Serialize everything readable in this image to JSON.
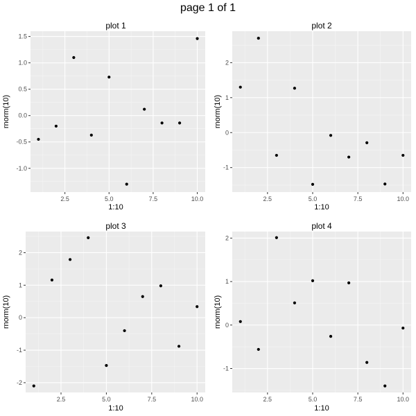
{
  "page": {
    "title": "page 1 of 1"
  },
  "colors": {
    "panel_background": "#EBEBEB",
    "grid_major": "#FFFFFF",
    "grid_minor": "#F5F5F5",
    "point": "#000000",
    "tick_text": "#4D4D4D"
  },
  "chart_data": [
    {
      "type": "scatter",
      "title": "plot 1",
      "xlabel": "1:10",
      "ylabel": "rnorm(10)",
      "grid": true,
      "xlim": [
        0.55,
        10.45
      ],
      "ylim": [
        -1.45,
        1.6
      ],
      "xticks": [
        2.5,
        5.0,
        7.5,
        10.0
      ],
      "xtick_labels": [
        "2.5",
        "5.0",
        "7.5",
        "10.0"
      ],
      "yticks": [
        -1.0,
        -0.5,
        0.0,
        0.5,
        1.0,
        1.5
      ],
      "ytick_labels": [
        "-1.0",
        "-0.5",
        "0.0",
        "0.5",
        "1.0",
        "1.5"
      ],
      "x": [
        1,
        2,
        3,
        4,
        5,
        6,
        7,
        8,
        9,
        10
      ],
      "y": [
        -0.45,
        -0.2,
        1.1,
        -0.37,
        0.73,
        -1.3,
        0.12,
        -0.14,
        -0.14,
        1.46
      ]
    },
    {
      "type": "scatter",
      "title": "plot 2",
      "xlabel": "1:10",
      "ylabel": "rnorm(10)",
      "grid": true,
      "xlim": [
        0.55,
        10.45
      ],
      "ylim": [
        -1.7,
        2.9
      ],
      "xticks": [
        2.5,
        5.0,
        7.5,
        10.0
      ],
      "xtick_labels": [
        "2.5",
        "5.0",
        "7.5",
        "10.0"
      ],
      "yticks": [
        -1,
        0,
        1,
        2
      ],
      "ytick_labels": [
        "-1",
        "0",
        "1",
        "2"
      ],
      "x": [
        1,
        2,
        3,
        4,
        5,
        6,
        7,
        8,
        9,
        10
      ],
      "y": [
        1.3,
        2.7,
        -0.65,
        1.27,
        -1.48,
        -0.08,
        -0.7,
        -0.29,
        -1.47,
        -0.65
      ]
    },
    {
      "type": "scatter",
      "title": "plot 3",
      "xlabel": "1:10",
      "ylabel": "rnorm(10)",
      "grid": true,
      "xlim": [
        0.55,
        10.45
      ],
      "ylim": [
        -2.3,
        2.65
      ],
      "xticks": [
        2.5,
        5.0,
        7.5,
        10.0
      ],
      "xtick_labels": [
        "2.5",
        "5.0",
        "7.5",
        "10.0"
      ],
      "yticks": [
        -2,
        -1,
        0,
        1,
        2
      ],
      "ytick_labels": [
        "-2",
        "-1",
        "0",
        "1",
        "2"
      ],
      "x": [
        1,
        2,
        3,
        4,
        5,
        6,
        7,
        8,
        9,
        10
      ],
      "y": [
        -2.1,
        1.16,
        1.79,
        2.46,
        -1.47,
        -0.4,
        0.65,
        0.98,
        -0.88,
        0.34
      ]
    },
    {
      "type": "scatter",
      "title": "plot 4",
      "xlabel": "1:10",
      "ylabel": "rnorm(10)",
      "grid": true,
      "xlim": [
        0.55,
        10.45
      ],
      "ylim": [
        -1.55,
        2.15
      ],
      "xticks": [
        2.5,
        5.0,
        7.5,
        10.0
      ],
      "xtick_labels": [
        "2.5",
        "5.0",
        "7.5",
        "10.0"
      ],
      "yticks": [
        -1,
        0,
        1,
        2
      ],
      "ytick_labels": [
        "-1",
        "0",
        "1",
        "2"
      ],
      "x": [
        1,
        2,
        3,
        4,
        5,
        6,
        7,
        8,
        9,
        10
      ],
      "y": [
        0.08,
        -0.56,
        2.01,
        0.51,
        1.02,
        -0.26,
        0.97,
        -0.86,
        -1.4,
        -0.07
      ]
    }
  ]
}
